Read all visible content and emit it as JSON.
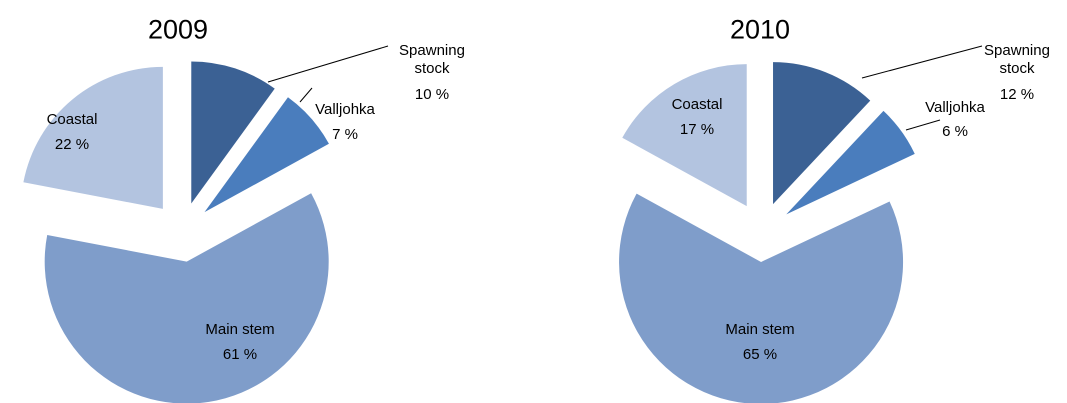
{
  "chart_data": [
    {
      "type": "pie",
      "title": "2009",
      "categories": [
        "Spawning stock",
        "Valljohka",
        "Main stem",
        "Coastal"
      ],
      "values": [
        10,
        7,
        61,
        22
      ],
      "value_labels": [
        "10 %",
        "7 %",
        "61 %",
        "22 %"
      ],
      "colors": [
        "#3b6194",
        "#4a7dbd",
        "#7f9dca",
        "#b3c4e0"
      ]
    },
    {
      "type": "pie",
      "title": "2010",
      "categories": [
        "Spawning stock",
        "Valljohka",
        "Main stem",
        "Coastal"
      ],
      "values": [
        12,
        6,
        65,
        17
      ],
      "value_labels": [
        "12 %",
        "6 %",
        "65 %",
        "17 %"
      ],
      "colors": [
        "#3b6194",
        "#4a7dbd",
        "#7f9dca",
        "#b3c4e0"
      ]
    }
  ]
}
